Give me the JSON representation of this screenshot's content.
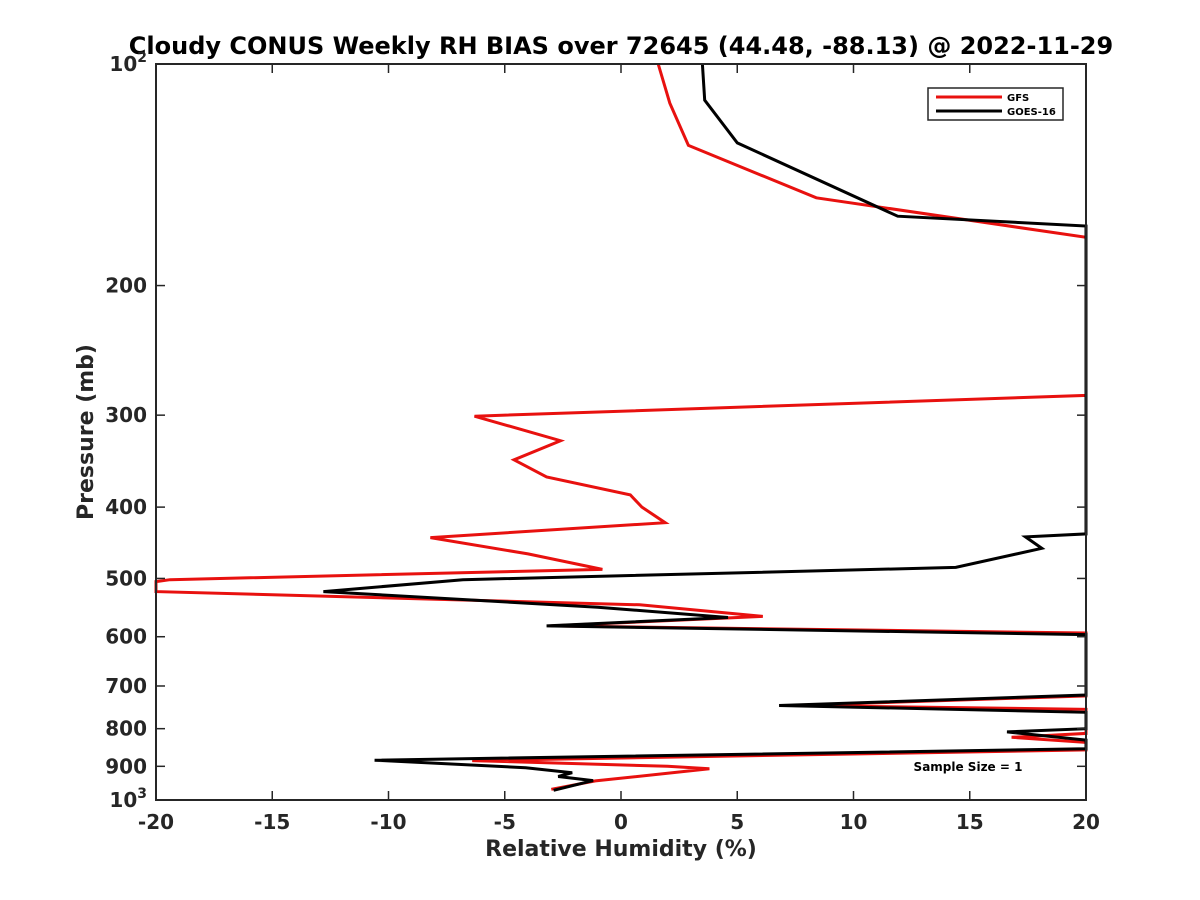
{
  "chart_data": {
    "type": "line",
    "title": "Cloudy CONUS Weekly RH BIAS over 72645 (44.48, -88.13) @ 2022-11-29",
    "xlabel": "Relative Humidity (%)",
    "ylabel": "Pressure (mb)",
    "xlim": [
      -20,
      20
    ],
    "ylim": [
      100,
      1000
    ],
    "y_scale": "log",
    "y_reversed": true,
    "grid": false,
    "legend_position": "top-right",
    "x_ticks": [
      {
        "value": -20,
        "label": "-20"
      },
      {
        "value": -15,
        "label": "-15"
      },
      {
        "value": -10,
        "label": "-10"
      },
      {
        "value": -5,
        "label": "-5"
      },
      {
        "value": 0,
        "label": "0"
      },
      {
        "value": 5,
        "label": "5"
      },
      {
        "value": 10,
        "label": "10"
      },
      {
        "value": 15,
        "label": "15"
      },
      {
        "value": 20,
        "label": "20"
      }
    ],
    "y_ticks": [
      {
        "value": 100,
        "base": "10",
        "exp": "2"
      },
      {
        "value": 200,
        "base": "200",
        "exp": ""
      },
      {
        "value": 300,
        "base": "300",
        "exp": ""
      },
      {
        "value": 400,
        "base": "400",
        "exp": ""
      },
      {
        "value": 500,
        "base": "500",
        "exp": ""
      },
      {
        "value": 600,
        "base": "600",
        "exp": ""
      },
      {
        "value": 700,
        "base": "700",
        "exp": ""
      },
      {
        "value": 800,
        "base": "800",
        "exp": ""
      },
      {
        "value": 900,
        "base": "900",
        "exp": ""
      },
      {
        "value": 1000,
        "base": "10",
        "exp": "3"
      }
    ],
    "series": [
      {
        "name": "GFS",
        "color": "#e8110f",
        "points": [
          [
            1.6,
            100
          ],
          [
            2.1,
            113
          ],
          [
            2.9,
            129
          ],
          [
            8.4,
            152
          ],
          [
            20,
            172
          ],
          [
            20,
            282
          ],
          [
            -6.3,
            301
          ],
          [
            -2.6,
            325
          ],
          [
            -4.6,
            345
          ],
          [
            -3.2,
            364
          ],
          [
            0.4,
            385
          ],
          [
            0.9,
            400
          ],
          [
            1.9,
            420
          ],
          [
            -8.2,
            440
          ],
          [
            -4,
            463
          ],
          [
            -0.8,
            486
          ],
          [
            -19.4,
            502
          ],
          [
            -20,
            505
          ],
          [
            -20,
            521
          ],
          [
            0.8,
            543
          ],
          [
            6.1,
            563
          ],
          [
            -3,
            580
          ],
          [
            20,
            593
          ],
          [
            20,
            722
          ],
          [
            7.4,
            744
          ],
          [
            20,
            753
          ],
          [
            20,
            812
          ],
          [
            16.8,
            822
          ],
          [
            20,
            835
          ],
          [
            20,
            855
          ],
          [
            -6.4,
            884
          ],
          [
            2,
            900
          ],
          [
            3.8,
            907
          ],
          [
            -1.1,
            942
          ],
          [
            -3,
            967
          ]
        ]
      },
      {
        "name": "GOES-16",
        "color": "#000000",
        "points": [
          [
            3.5,
            100
          ],
          [
            3.6,
            112
          ],
          [
            5,
            128
          ],
          [
            11.9,
            161
          ],
          [
            20,
            166
          ],
          [
            20,
            435
          ],
          [
            17.4,
            439
          ],
          [
            18.1,
            455
          ],
          [
            14.4,
            483
          ],
          [
            -6.8,
            502
          ],
          [
            -12.8,
            521
          ],
          [
            -1,
            547
          ],
          [
            4.6,
            565
          ],
          [
            -3.2,
            580
          ],
          [
            20,
            596
          ],
          [
            20,
            720
          ],
          [
            6.8,
            744
          ],
          [
            20,
            760
          ],
          [
            20,
            800
          ],
          [
            16.6,
            808
          ],
          [
            20,
            829
          ],
          [
            20,
            852
          ],
          [
            -10.6,
            883
          ],
          [
            -4.1,
            904
          ],
          [
            -2.1,
            918
          ],
          [
            -2.7,
            929
          ],
          [
            -1.2,
            941
          ],
          [
            -2.9,
            970
          ]
        ]
      }
    ],
    "annotation": "Sample Size = 1"
  }
}
